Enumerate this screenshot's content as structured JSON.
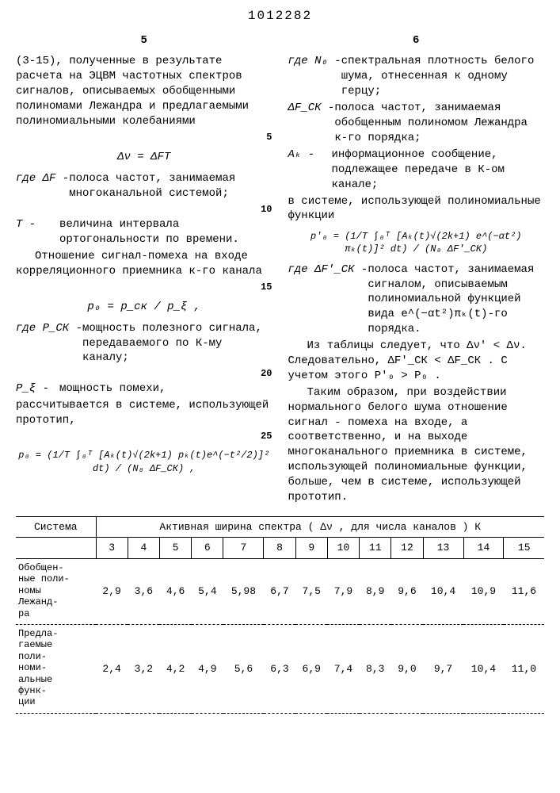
{
  "doc_number": "1012282",
  "left": {
    "page_num": "5",
    "p1": "(3-15), полученные в результате расчета на ЭЦВМ частотных спектров сигналов, описываемых обобщенными полиномами Лежандра и предлагаемыми полиномиальными колебаниями",
    "formula1": "Δν = ΔFT",
    "def_dF_sym": "где ΔF -",
    "def_dF_txt": "полоса частот, занимаемая многоканальной системой;",
    "def_T_sym": "T -",
    "def_T_txt": "величина интервала ортогональности по времени.",
    "p2": "Отношение сигнал-помеха на входе корреляционного приемника к-го канала",
    "formula2": "p₀ = p_ск / p_ξ ,",
    "def_Pck_sym": "где P_СК -",
    "def_Pck_txt": "мощность полезного сигнала, передаваемого по К-му каналу;",
    "def_Pe_sym": "P_ξ -",
    "def_Pe_txt": "мощность помехи,",
    "p3": "рассчитывается в системе, использующей прототип,",
    "formula3": "p₀ = (1/T ∫₀ᵀ [Aₖ(t)√(2k+1) pₖ(t)e^(−t²/2)]² dt) / (N₀ ΔF_СК) ,",
    "ln5": "5",
    "ln10": "10",
    "ln15": "15",
    "ln20": "20",
    "ln25": "25"
  },
  "right": {
    "page_num": "6",
    "def_N0_sym": "где N₀ -",
    "def_N0_txt": "спектральная плотность белого шума, отнесенная к одному герцу;",
    "def_dFck_sym": "ΔF_СК -",
    "def_dFck_txt": "полоса частот, занимаемая обобщенным полиномом Лежандра к-го порядка;",
    "def_Ak_sym": "Aₖ -",
    "def_Ak_txt": "информационное сообщение, подлежащее передаче в К-ом канале;",
    "p1": "в системе, использующей полиномиальные функции",
    "formula1": "p'₀ = (1/T ∫₀ᵀ [Aₖ(t)√(2k+1) e^(−αt²) πₖ(t)]² dt) / (N₀ ΔF'_СК)",
    "def_dFck2_sym": "где ΔF'_СК -",
    "def_dFck2_txt": "полоса частот, занимаемая сигналом, описываемым полиномиальной функцией вида e^(−αt²)πₖ(t)-го порядка.",
    "p2": "Из таблицы следует, что Δν' < Δν. Следовательно, ΔF'_СК < ΔF_СК . С учетом этого P'₀ > P₀ .",
    "p3": "Таким образом, при воздействии нормального белого шума отношение сигнал - помеха на входе, а соответственно, и на выходе многоканального приемника в системе, использующей полиномиальные функции, больше, чем в системе, использующей прототип."
  },
  "table": {
    "header_system": "Система",
    "header_spectrum": "Активная ширина спектра ( Δν , для числа каналов ) К",
    "cols": [
      "3",
      "4",
      "5",
      "6",
      "7",
      "8",
      "9",
      "10",
      "11",
      "12",
      "13",
      "14",
      "15"
    ],
    "row1_label": "Обобщен-\nные поли-\nномы\nЛежанд-\nра",
    "row1": [
      "2,9",
      "3,6",
      "4,6",
      "5,4",
      "5,98",
      "6,7",
      "7,5",
      "7,9",
      "8,9",
      "9,6",
      "10,4",
      "10,9",
      "11,6"
    ],
    "row2_label": "Предла-\nгаемые\nполи-\nноми-\nальные\nфунк-\nции",
    "row2": [
      "2,4",
      "3,2",
      "4,2",
      "4,9",
      "5,6",
      "6,3",
      "6,9",
      "7,4",
      "8,3",
      "9,0",
      "9,7",
      "10,4",
      "11,0"
    ]
  }
}
